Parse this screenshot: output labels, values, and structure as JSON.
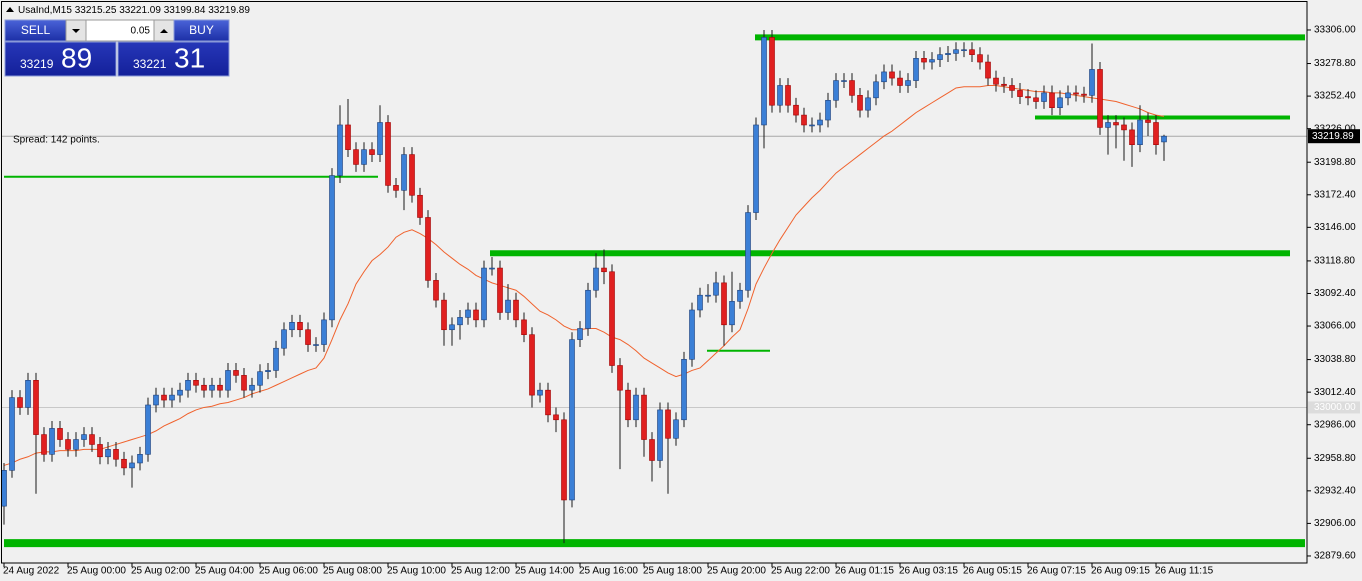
{
  "chart_data": {
    "type": "candlestick",
    "title": "UsaInd,M15",
    "annotation": "Spread: 142 points.",
    "categories": [
      "24 Aug 2022",
      null,
      null,
      null,
      null,
      null,
      null,
      null,
      "25 Aug 00:00",
      null,
      null,
      null,
      null,
      null,
      null,
      null,
      "25 Aug 02:00",
      null,
      null,
      null,
      null,
      null,
      null,
      null,
      "25 Aug 04:00",
      null,
      null,
      null,
      null,
      null,
      null,
      null,
      "25 Aug 06:00",
      null,
      null,
      null,
      null,
      null,
      null,
      null,
      "25 Aug 08:00",
      null,
      null,
      null,
      null,
      null,
      null,
      null,
      "25 Aug 10:00",
      null,
      null,
      null,
      null,
      null,
      null,
      null,
      "25 Aug 12:00",
      null,
      null,
      null,
      null,
      null,
      null,
      null,
      "25 Aug 14:00",
      null,
      null,
      null,
      null,
      null,
      null,
      null,
      "25 Aug 16:00",
      null,
      null,
      null,
      null,
      null,
      null,
      null,
      "25 Aug 18:00",
      null,
      null,
      null,
      null,
      null,
      null,
      null,
      "25 Aug 20:00",
      null,
      null,
      null,
      null,
      null,
      null,
      null,
      "25 Aug 22:00",
      null,
      null,
      null,
      null,
      null,
      null,
      null,
      "26 Aug 01:15",
      null,
      null,
      null,
      null,
      null,
      null,
      null,
      "26 Aug 03:15",
      null,
      null,
      null,
      null,
      null,
      null,
      null,
      "26 Aug 05:15",
      null,
      null,
      null,
      null,
      null,
      null,
      null,
      "26 Aug 07:15",
      null,
      null,
      null,
      null,
      null,
      null,
      null,
      "26 Aug 09:15",
      null,
      null,
      null,
      null,
      null,
      null,
      null,
      "26 Aug 11:15",
      null
    ],
    "open": [
      32920,
      32949,
      33008,
      33000,
      33022,
      32978,
      32962,
      32983,
      32974,
      32966,
      32974,
      32978,
      32970,
      32960,
      32966,
      32958,
      32951,
      32955,
      32962,
      33002,
      33010,
      33006,
      33010,
      33014,
      33022,
      33018,
      33014,
      33018,
      33014,
      33030,
      33026,
      33014,
      33018,
      33029,
      33030,
      33048,
      33063,
      33069,
      33063,
      33051,
      33051,
      33071,
      33188,
      33229,
      33209,
      33197,
      33209,
      33205,
      33231,
      33180,
      33176,
      33205,
      33172,
      33154,
      33103,
      33087,
      33063,
      33067,
      33073,
      33079,
      33071,
      33113,
      33113,
      33077,
      33087,
      33071,
      33059,
      33010,
      33014,
      32994,
      32990,
      32925,
      33055,
      33064,
      33095,
      33113,
      33110,
      33034,
      33014,
      32990,
      33010,
      32974,
      32957,
      32998,
      32975,
      32990,
      33039,
      33079,
      33091,
      33091,
      33101,
      33067,
      33086,
      33095,
      33158,
      33229,
      33300,
      33245,
      33261,
      33245,
      33237,
      33229,
      33229,
      33233,
      33249,
      33265,
      33265,
      33253,
      33241,
      33251,
      33264,
      33272,
      33267,
      33261,
      33265,
      33283,
      33280,
      33282,
      33286,
      33287,
      33290,
      33290,
      33286,
      33280,
      33267,
      33262,
      33261,
      33257,
      33252,
      33251,
      33248,
      33255,
      33243,
      33251,
      33255,
      33254,
      33253,
      33274,
      33227,
      33231,
      33229,
      33225,
      33213,
      33233,
      33231,
      33215.25
    ],
    "high": [
      32955,
      33014,
      33014,
      33028,
      33028,
      32984,
      32989,
      32989,
      32980,
      32980,
      32984,
      32984,
      32976,
      32972,
      32972,
      32964,
      32961,
      32968,
      33008,
      33016,
      33016,
      33016,
      33020,
      33028,
      33028,
      33024,
      33024,
      33024,
      33036,
      33036,
      33032,
      33024,
      33035,
      33036,
      33054,
      33069,
      33075,
      33075,
      33069,
      33057,
      33077,
      33194,
      33245,
      33250,
      33215,
      33215,
      33215,
      33245,
      33237,
      33186,
      33211,
      33211,
      33178,
      33160,
      33109,
      33093,
      33073,
      33079,
      33085,
      33085,
      33119,
      33122,
      33119,
      33100,
      33093,
      33077,
      33065,
      33020,
      33020,
      33000,
      32996,
      33061,
      33070,
      33101,
      33125,
      33128,
      33116,
      33040,
      33020,
      33016,
      33016,
      32980,
      33004,
      33004,
      32996,
      33045,
      33085,
      33097,
      33100,
      33110,
      33107,
      33110,
      33101,
      33164,
      33235,
      33306,
      33306,
      33267,
      33267,
      33251,
      33243,
      33235,
      33239,
      33255,
      33271,
      33271,
      33271,
      33259,
      33257,
      33270,
      33278,
      33278,
      33273,
      33271,
      33289,
      33289,
      33288,
      33292,
      33293,
      33296,
      33296,
      33296,
      33292,
      33286,
      33273,
      33268,
      33267,
      33263,
      33258,
      33257,
      33261,
      33261,
      33257,
      33261,
      33261,
      33260,
      33295,
      33280,
      33237,
      33237,
      33235,
      33231,
      33245,
      33239,
      33237,
      33221.09
    ],
    "low": [
      32905,
      32943,
      32994,
      32994,
      32930,
      32956,
      32956,
      32968,
      32960,
      32960,
      32968,
      32964,
      32954,
      32954,
      32952,
      32945,
      32935,
      32949,
      32956,
      32996,
      33000,
      33000,
      33004,
      33008,
      33012,
      33008,
      33008,
      33008,
      33008,
      33020,
      33008,
      33008,
      33012,
      33023,
      33024,
      33042,
      33057,
      33057,
      33045,
      33045,
      33045,
      33065,
      33182,
      33203,
      33191,
      33191,
      33199,
      33199,
      33174,
      33170,
      33160,
      33166,
      33148,
      33097,
      33081,
      33050,
      33050,
      33055,
      33067,
      33065,
      33065,
      33107,
      33071,
      33071,
      33065,
      33053,
      33000,
      33004,
      32988,
      32980,
      32890,
      32919,
      33049,
      33058,
      33089,
      33100,
      33028,
      32950,
      32984,
      32984,
      32960,
      32940,
      32951,
      32930,
      32969,
      32984,
      33033,
      33073,
      33085,
      33085,
      33050,
      33061,
      33080,
      33089,
      33152,
      33210,
      33239,
      33239,
      33239,
      33231,
      33223,
      33223,
      33223,
      33227,
      33243,
      33259,
      33247,
      33235,
      33235,
      33245,
      33258,
      33261,
      33255,
      33255,
      33259,
      33274,
      33274,
      33276,
      33280,
      33281,
      33284,
      33280,
      33274,
      33261,
      33256,
      33255,
      33251,
      33246,
      33245,
      33242,
      33242,
      33237,
      33237,
      33245,
      33248,
      33247,
      33247,
      33221,
      33205,
      33210,
      33200,
      33195,
      33207,
      33220,
      33205,
      33199.84
    ],
    "close": [
      32949,
      33008,
      33000,
      33022,
      32978,
      32962,
      32983,
      32974,
      32966,
      32974,
      32978,
      32970,
      32960,
      32966,
      32958,
      32951,
      32955,
      32962,
      33002,
      33010,
      33006,
      33010,
      33014,
      33022,
      33018,
      33014,
      33018,
      33014,
      33030,
      33026,
      33014,
      33018,
      33029,
      33030,
      33048,
      33063,
      33069,
      33063,
      33051,
      33051,
      33071,
      33188,
      33229,
      33209,
      33197,
      33209,
      33205,
      33231,
      33180,
      33176,
      33205,
      33172,
      33154,
      33103,
      33087,
      33063,
      33067,
      33073,
      33079,
      33071,
      33113,
      33113,
      33077,
      33087,
      33071,
      33059,
      33010,
      33014,
      32994,
      32990,
      32925,
      33055,
      33064,
      33095,
      33113,
      33110,
      33034,
      33014,
      32990,
      33010,
      32974,
      32957,
      32998,
      32975,
      32990,
      33039,
      33079,
      33091,
      33091,
      33101,
      33067,
      33086,
      33095,
      33158,
      33229,
      33300,
      33245,
      33261,
      33245,
      33237,
      33229,
      33229,
      33233,
      33249,
      33265,
      33265,
      33253,
      33241,
      33251,
      33264,
      33272,
      33267,
      33261,
      33265,
      33283,
      33280,
      33282,
      33286,
      33287,
      33290,
      33290,
      33286,
      33280,
      33267,
      33262,
      33261,
      33257,
      33252,
      33251,
      33248,
      33255,
      33243,
      33251,
      33255,
      33254,
      33253,
      33274,
      33227,
      33231,
      33229,
      33225,
      33213,
      33233,
      33231,
      33213,
      33219.89
    ],
    "up_color": "#3b7fd6",
    "down_color": "#e02020",
    "moving_average": {
      "color": "#f0622d",
      "values": [
        32953,
        32955,
        32958,
        32960,
        32963,
        32964,
        32964,
        32965,
        32965,
        32965,
        32966,
        32966,
        32966,
        32968,
        32970,
        32972,
        32974,
        32976,
        32978,
        32981,
        32985,
        32988,
        32991,
        32995,
        32998,
        33000,
        33001,
        33003,
        33004,
        33006,
        33008,
        33011,
        33013,
        33015,
        33018,
        33021,
        33024,
        33027,
        33030,
        33032,
        33040,
        33055,
        33071,
        33084,
        33100,
        33110,
        33119,
        33124,
        33130,
        33138,
        33142,
        33144,
        33141,
        33137,
        33132,
        33126,
        33121,
        33116,
        33112,
        33107,
        33104,
        33101,
        33099,
        33097,
        33095,
        33090,
        33084,
        33078,
        33075,
        33071,
        33066,
        33063,
        33063,
        33064,
        33064,
        33061,
        33057,
        33055,
        33051,
        33046,
        33040,
        33036,
        33032,
        33028,
        33025,
        33027,
        33030,
        33032,
        33038,
        33044,
        33050,
        33057,
        33063,
        33080,
        33100,
        33113,
        33125,
        33136,
        33146,
        33156,
        33163,
        33170,
        33176,
        33183,
        33190,
        33195,
        33200,
        33205,
        33210,
        33215,
        33220,
        33224,
        33229,
        33234,
        33239,
        33243,
        33247,
        33251,
        33255,
        33259,
        33260,
        33260,
        33260,
        33261,
        33261,
        33260,
        33259,
        33258,
        33257,
        33256,
        33256,
        33255,
        33255,
        33254,
        33253,
        33252,
        33251,
        33250,
        33249,
        33248,
        33246,
        33244,
        33242,
        33239,
        33237,
        33236
      ]
    },
    "levels": [
      33187,
      33300,
      33125,
      33235,
      33046,
      32890
    ],
    "level_color": "#00b400",
    "current_price": 33219.89,
    "reference_level": {
      "value": 33000,
      "label": "33000.00"
    },
    "ylim": [
      32873.9,
      33330.3
    ],
    "yticks": [
      {
        "value": 33306,
        "label": "33306.00"
      },
      {
        "value": 33278.8,
        "label": "33278.80"
      },
      {
        "value": 33252.4,
        "label": "33252.40"
      },
      {
        "value": 33226,
        "label": "33226.00"
      },
      {
        "value": 33198.8,
        "label": "33198.80"
      },
      {
        "value": 33172.4,
        "label": "33172.40"
      },
      {
        "value": 33146,
        "label": "33146.00"
      },
      {
        "value": 33118.8,
        "label": "33118.80"
      },
      {
        "value": 33092.4,
        "label": "33092.40"
      },
      {
        "value": 33066,
        "label": "33066.00"
      },
      {
        "value": 33038.8,
        "label": "33038.80"
      },
      {
        "value": 33012.4,
        "label": "33012.40"
      },
      {
        "value": 32986,
        "label": "32986.00"
      },
      {
        "value": 32958.8,
        "label": "32958.80"
      },
      {
        "value": 32932.4,
        "label": "32932.40"
      },
      {
        "value": 32906,
        "label": "32906.00"
      },
      {
        "value": 32879.6,
        "label": "32879.60"
      }
    ],
    "grid": false
  },
  "trade_panel": {
    "sell": "SELL",
    "buy": "BUY",
    "lot": "0.05",
    "bid_main": "33219",
    "bid_pips": "89",
    "ask_main": "33221",
    "ask_pips": "31"
  }
}
